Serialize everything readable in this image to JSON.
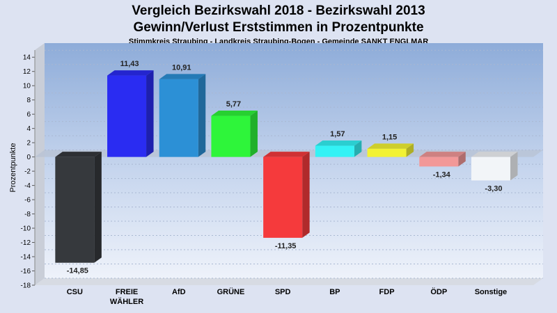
{
  "title": "Vergleich Bezirkswahl 2018 - Bezirkswahl 2013",
  "subtitle": "Gewinn/Verlust Erststimmen in Prozentpunkte",
  "caption": "Stimmkreis Straubing - Landkreis Straubing-Bogen - Gemeinde SANKT ENGLMAR",
  "chart_data": {
    "type": "bar",
    "ylabel": "Prozentpunkte",
    "xlabel": "",
    "ylim": [
      -18,
      15
    ],
    "yticks": [
      14,
      12,
      10,
      8,
      6,
      4,
      2,
      0,
      -2,
      -4,
      -6,
      -8,
      -10,
      -12,
      -14,
      -16,
      -18
    ],
    "grid": true,
    "categories": [
      [
        "CSU"
      ],
      [
        "FREIE",
        "WÄHLER"
      ],
      [
        "AfD"
      ],
      [
        "GRÜNE"
      ],
      [
        "SPD"
      ],
      [
        "BP"
      ],
      [
        "FDP"
      ],
      [
        "ÖDP"
      ],
      [
        "Sonstige"
      ]
    ],
    "values": [
      -14.85,
      11.43,
      10.91,
      5.77,
      -11.35,
      1.57,
      1.15,
      -1.34,
      -3.3
    ],
    "labels": [
      "-14,85",
      "11,43",
      "10,91",
      "5,77",
      "-11,35",
      "1,57",
      "1,15",
      "-1,34",
      "-3,30"
    ],
    "colors": [
      "#36393d",
      "#2a2cf2",
      "#2c90d6",
      "#2ef53a",
      "#f53a3c",
      "#33f2f5",
      "#f2f233",
      "#f29898",
      "#f2f5f8"
    ]
  }
}
